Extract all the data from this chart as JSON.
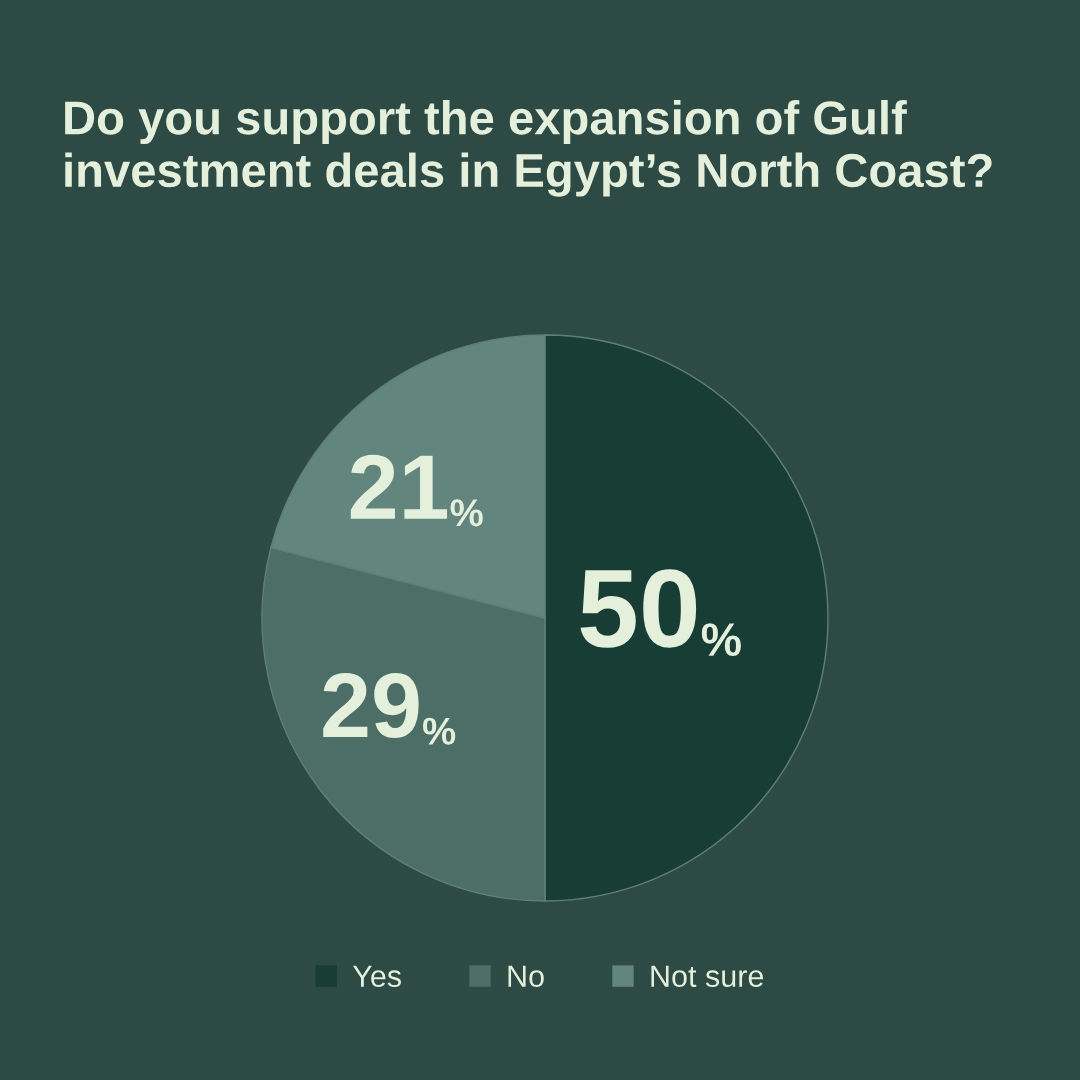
{
  "chart_data": {
    "type": "pie",
    "title": "Do you support the expansion of Gulf\ninvestment deals in Egypt’s North Coast?",
    "categories": [
      "Yes",
      "No",
      "Not sure"
    ],
    "values": [
      50,
      29,
      21
    ],
    "colors": [
      "#173d35",
      "#4c6e67",
      "#62857e"
    ],
    "value_labels": [
      "50%",
      "29%",
      "21%"
    ],
    "legend": "bottom"
  }
}
